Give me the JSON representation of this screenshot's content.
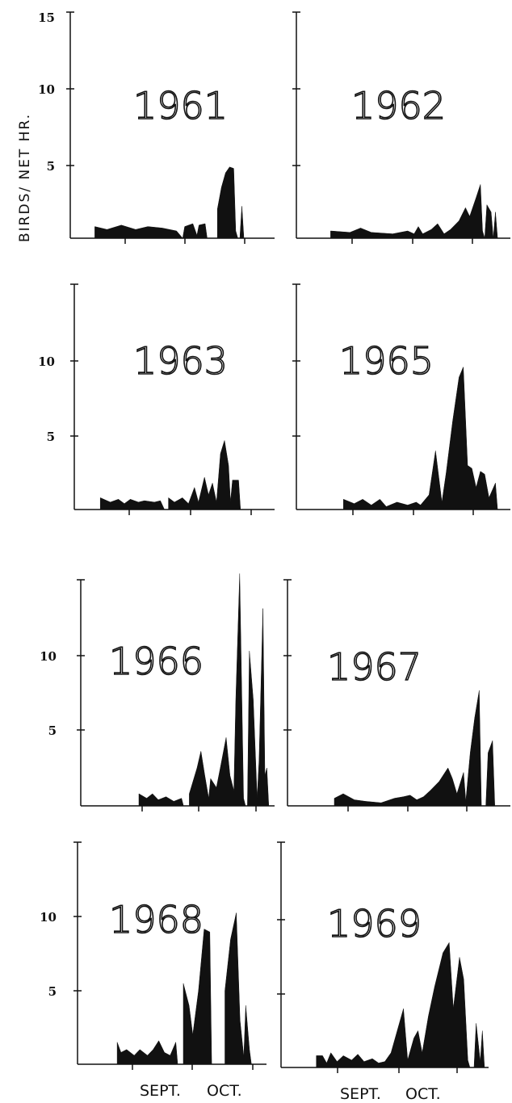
{
  "ylabel": "BIRDS/ NET HR.",
  "xlabels": [
    "SEPT.",
    "OCT."
  ],
  "chart_data": [
    {
      "type": "area",
      "title": "1961",
      "ytick_labels": [
        "15",
        "10",
        "5"
      ],
      "ylim": [
        0,
        15
      ],
      "points": [
        [
          0.12,
          0
        ],
        [
          0.12,
          0.8
        ],
        [
          0.18,
          0.6
        ],
        [
          0.25,
          0.9
        ],
        [
          0.32,
          0.6
        ],
        [
          0.38,
          0.8
        ],
        [
          0.45,
          0.7
        ],
        [
          0.52,
          0.5
        ],
        [
          0.55,
          0
        ],
        [
          0.56,
          0.8
        ],
        [
          0.6,
          1.0
        ],
        [
          0.62,
          0.2
        ],
        [
          0.63,
          0.9
        ],
        [
          0.66,
          1.0
        ],
        [
          0.67,
          0
        ],
        [
          0.72,
          0
        ],
        [
          0.72,
          2.0
        ],
        [
          0.74,
          3.5
        ],
        [
          0.76,
          4.5
        ],
        [
          0.78,
          4.9
        ],
        [
          0.8,
          4.8
        ],
        [
          0.81,
          0.5
        ],
        [
          0.82,
          0
        ],
        [
          0.83,
          0
        ],
        [
          0.84,
          2.2
        ],
        [
          0.85,
          0
        ]
      ]
    },
    {
      "type": "area",
      "title": "1962",
      "ytick_labels": [],
      "ylim": [
        0,
        15
      ],
      "points": [
        [
          0.16,
          0
        ],
        [
          0.16,
          0.5
        ],
        [
          0.25,
          0.4
        ],
        [
          0.3,
          0.7
        ],
        [
          0.35,
          0.4
        ],
        [
          0.45,
          0.3
        ],
        [
          0.52,
          0.5
        ],
        [
          0.55,
          0.3
        ],
        [
          0.57,
          0.8
        ],
        [
          0.59,
          0.3
        ],
        [
          0.63,
          0.6
        ],
        [
          0.66,
          1.0
        ],
        [
          0.69,
          0.3
        ],
        [
          0.72,
          0.6
        ],
        [
          0.76,
          1.2
        ],
        [
          0.79,
          2.1
        ],
        [
          0.81,
          1.5
        ],
        [
          0.84,
          2.8
        ],
        [
          0.86,
          3.7
        ],
        [
          0.87,
          0.5
        ],
        [
          0.88,
          0
        ],
        [
          0.89,
          2.3
        ],
        [
          0.91,
          1.8
        ],
        [
          0.92,
          0
        ],
        [
          0.93,
          1.8
        ],
        [
          0.94,
          0
        ]
      ]
    },
    {
      "type": "area",
      "title": "1963",
      "ytick_labels": [
        "10",
        "5"
      ],
      "ylim": [
        0,
        15
      ],
      "points": [
        [
          0.13,
          0
        ],
        [
          0.13,
          0.8
        ],
        [
          0.18,
          0.5
        ],
        [
          0.22,
          0.7
        ],
        [
          0.25,
          0.4
        ],
        [
          0.28,
          0.7
        ],
        [
          0.32,
          0.5
        ],
        [
          0.35,
          0.6
        ],
        [
          0.4,
          0.5
        ],
        [
          0.43,
          0.6
        ],
        [
          0.45,
          0
        ],
        [
          0.47,
          0
        ],
        [
          0.47,
          0.8
        ],
        [
          0.5,
          0.5
        ],
        [
          0.54,
          0.8
        ],
        [
          0.57,
          0.4
        ],
        [
          0.6,
          1.5
        ],
        [
          0.62,
          0.5
        ],
        [
          0.65,
          2.2
        ],
        [
          0.67,
          1.0
        ],
        [
          0.69,
          1.8
        ],
        [
          0.71,
          0.5
        ],
        [
          0.73,
          3.8
        ],
        [
          0.75,
          4.7
        ],
        [
          0.77,
          3.0
        ],
        [
          0.78,
          0.5
        ],
        [
          0.79,
          2.0
        ],
        [
          0.82,
          2.0
        ],
        [
          0.83,
          0
        ]
      ]
    },
    {
      "type": "area",
      "title": "1965",
      "ytick_labels": [],
      "ylim": [
        0,
        15
      ],
      "points": [
        [
          0.22,
          0
        ],
        [
          0.22,
          0.7
        ],
        [
          0.27,
          0.4
        ],
        [
          0.31,
          0.7
        ],
        [
          0.35,
          0.3
        ],
        [
          0.39,
          0.7
        ],
        [
          0.42,
          0.2
        ],
        [
          0.47,
          0.5
        ],
        [
          0.52,
          0.3
        ],
        [
          0.56,
          0.5
        ],
        [
          0.58,
          0.3
        ],
        [
          0.62,
          1.0
        ],
        [
          0.65,
          4.0
        ],
        [
          0.68,
          0.5
        ],
        [
          0.7,
          2.5
        ],
        [
          0.73,
          6.0
        ],
        [
          0.76,
          9.0
        ],
        [
          0.78,
          9.7
        ],
        [
          0.8,
          3.0
        ],
        [
          0.82,
          2.8
        ],
        [
          0.84,
          1.5
        ],
        [
          0.86,
          2.6
        ],
        [
          0.88,
          2.4
        ],
        [
          0.9,
          0.8
        ],
        [
          0.93,
          1.8
        ],
        [
          0.94,
          0
        ]
      ]
    },
    {
      "type": "area",
      "title": "1966",
      "ytick_labels": [
        "10",
        "5"
      ],
      "ylim": [
        0,
        15
      ],
      "points": [
        [
          0.3,
          0
        ],
        [
          0.3,
          0.8
        ],
        [
          0.34,
          0.5
        ],
        [
          0.37,
          0.8
        ],
        [
          0.4,
          0.4
        ],
        [
          0.44,
          0.6
        ],
        [
          0.48,
          0.3
        ],
        [
          0.52,
          0.5
        ],
        [
          0.53,
          0
        ],
        [
          0.56,
          0
        ],
        [
          0.56,
          0.8
        ],
        [
          0.6,
          2.5
        ],
        [
          0.62,
          3.6
        ],
        [
          0.64,
          2.0
        ],
        [
          0.66,
          0.5
        ],
        [
          0.67,
          1.8
        ],
        [
          0.7,
          1.2
        ],
        [
          0.72,
          2.5
        ],
        [
          0.75,
          4.5
        ],
        [
          0.77,
          2.0
        ],
        [
          0.79,
          1.0
        ],
        [
          0.8,
          7.0
        ],
        [
          0.82,
          15.3
        ],
        [
          0.84,
          0.5
        ],
        [
          0.85,
          0
        ],
        [
          0.86,
          0
        ],
        [
          0.87,
          10.2
        ],
        [
          0.89,
          7.0
        ],
        [
          0.91,
          0.5
        ],
        [
          0.92,
          3.0
        ],
        [
          0.94,
          13.0
        ],
        [
          0.95,
          2.0
        ],
        [
          0.96,
          2.5
        ],
        [
          0.97,
          0
        ]
      ]
    },
    {
      "type": "area",
      "title": "1967",
      "ytick_labels": [],
      "ylim": [
        0,
        15
      ],
      "points": [
        [
          0.21,
          0
        ],
        [
          0.21,
          0.5
        ],
        [
          0.25,
          0.8
        ],
        [
          0.3,
          0.4
        ],
        [
          0.35,
          0.3
        ],
        [
          0.42,
          0.2
        ],
        [
          0.48,
          0.5
        ],
        [
          0.52,
          0.6
        ],
        [
          0.55,
          0.7
        ],
        [
          0.58,
          0.4
        ],
        [
          0.61,
          0.6
        ],
        [
          0.64,
          1.0
        ],
        [
          0.68,
          1.6
        ],
        [
          0.72,
          2.5
        ],
        [
          0.74,
          1.8
        ],
        [
          0.76,
          0.8
        ],
        [
          0.79,
          2.2
        ],
        [
          0.8,
          0.3
        ],
        [
          0.82,
          3.5
        ],
        [
          0.84,
          5.8
        ],
        [
          0.86,
          7.6
        ],
        [
          0.87,
          0
        ],
        [
          0.89,
          0
        ],
        [
          0.9,
          3.5
        ],
        [
          0.92,
          4.3
        ],
        [
          0.93,
          0
        ]
      ]
    },
    {
      "type": "area",
      "title": "1968",
      "ytick_labels": [
        "10",
        "5"
      ],
      "ylim": [
        0,
        15
      ],
      "points": [
        [
          0.21,
          0
        ],
        [
          0.21,
          1.5
        ],
        [
          0.23,
          0.8
        ],
        [
          0.26,
          1.0
        ],
        [
          0.3,
          0.6
        ],
        [
          0.33,
          1.0
        ],
        [
          0.37,
          0.6
        ],
        [
          0.4,
          1.0
        ],
        [
          0.43,
          1.6
        ],
        [
          0.46,
          0.8
        ],
        [
          0.49,
          0.6
        ],
        [
          0.52,
          1.5
        ],
        [
          0.53,
          0
        ],
        [
          0.56,
          0
        ],
        [
          0.56,
          5.5
        ],
        [
          0.59,
          4.0
        ],
        [
          0.61,
          2.0
        ],
        [
          0.64,
          5.0
        ],
        [
          0.67,
          9.2
        ],
        [
          0.7,
          9.0
        ],
        [
          0.71,
          0
        ],
        [
          0.78,
          0
        ],
        [
          0.78,
          5.0
        ],
        [
          0.81,
          8.5
        ],
        [
          0.84,
          10.3
        ],
        [
          0.86,
          3.0
        ],
        [
          0.88,
          0.5
        ],
        [
          0.89,
          4.0
        ],
        [
          0.91,
          1.0
        ],
        [
          0.92,
          0
        ]
      ]
    },
    {
      "type": "area",
      "title": "1969",
      "ytick_labels": [],
      "ylim": [
        0,
        15
      ],
      "points": [
        [
          0.17,
          0
        ],
        [
          0.17,
          0.8
        ],
        [
          0.2,
          0.8
        ],
        [
          0.22,
          0.3
        ],
        [
          0.24,
          1.0
        ],
        [
          0.27,
          0.4
        ],
        [
          0.3,
          0.8
        ],
        [
          0.34,
          0.5
        ],
        [
          0.37,
          0.9
        ],
        [
          0.4,
          0.4
        ],
        [
          0.44,
          0.6
        ],
        [
          0.47,
          0.3
        ],
        [
          0.5,
          0.4
        ],
        [
          0.53,
          1.0
        ],
        [
          0.56,
          2.5
        ],
        [
          0.59,
          4.0
        ],
        [
          0.61,
          0.5
        ],
        [
          0.64,
          2.0
        ],
        [
          0.66,
          2.5
        ],
        [
          0.68,
          1.0
        ],
        [
          0.71,
          3.5
        ],
        [
          0.74,
          5.5
        ],
        [
          0.78,
          7.8
        ],
        [
          0.81,
          8.5
        ],
        [
          0.83,
          4.0
        ],
        [
          0.86,
          7.5
        ],
        [
          0.88,
          6.0
        ],
        [
          0.9,
          0.5
        ],
        [
          0.91,
          0
        ],
        [
          0.93,
          0
        ],
        [
          0.94,
          3.0
        ],
        [
          0.96,
          0.4
        ],
        [
          0.97,
          2.5
        ],
        [
          0.98,
          0
        ]
      ]
    }
  ]
}
